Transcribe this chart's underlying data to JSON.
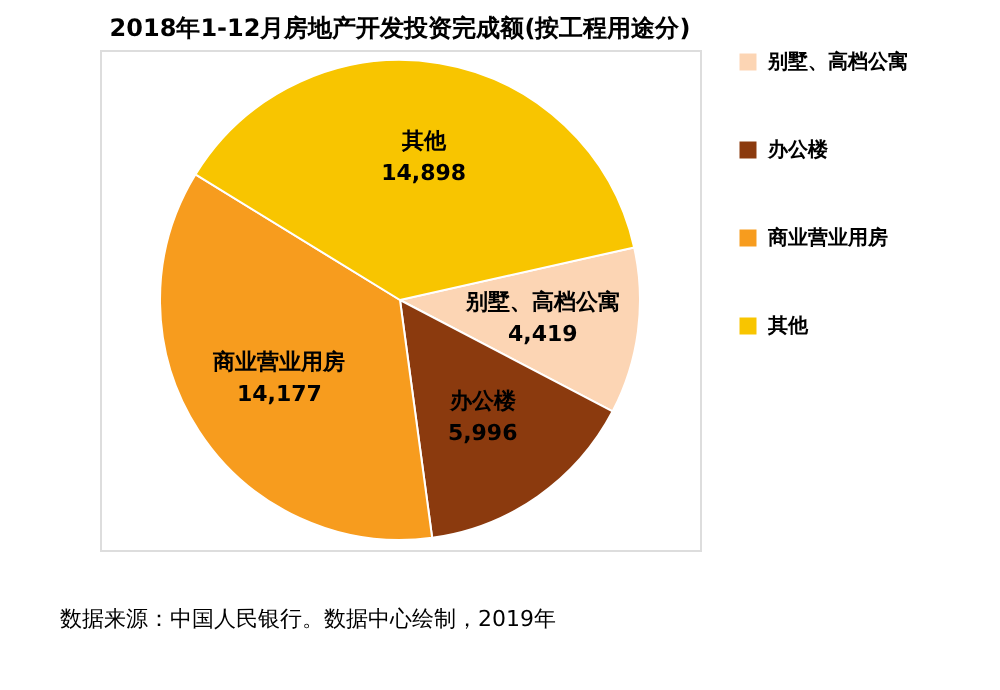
{
  "chart_data": {
    "type": "pie",
    "title": "2018年1-12月房地产开发投资完成额(按工程用途分)",
    "categories": [
      "别墅、高档公寓",
      "办公楼",
      "商业营业用房",
      "其他"
    ],
    "values": [
      4419,
      5996,
      14177,
      14898
    ],
    "colors": [
      "#fcd5b4",
      "#8b3a0e",
      "#f79c1e",
      "#f8c500"
    ],
    "value_labels": [
      "4,419",
      "5,996",
      "14,177",
      "14,898"
    ],
    "legend": "right",
    "annotations": [
      "数据来源：中国人民银行。数据中心绘制，2019年"
    ]
  }
}
